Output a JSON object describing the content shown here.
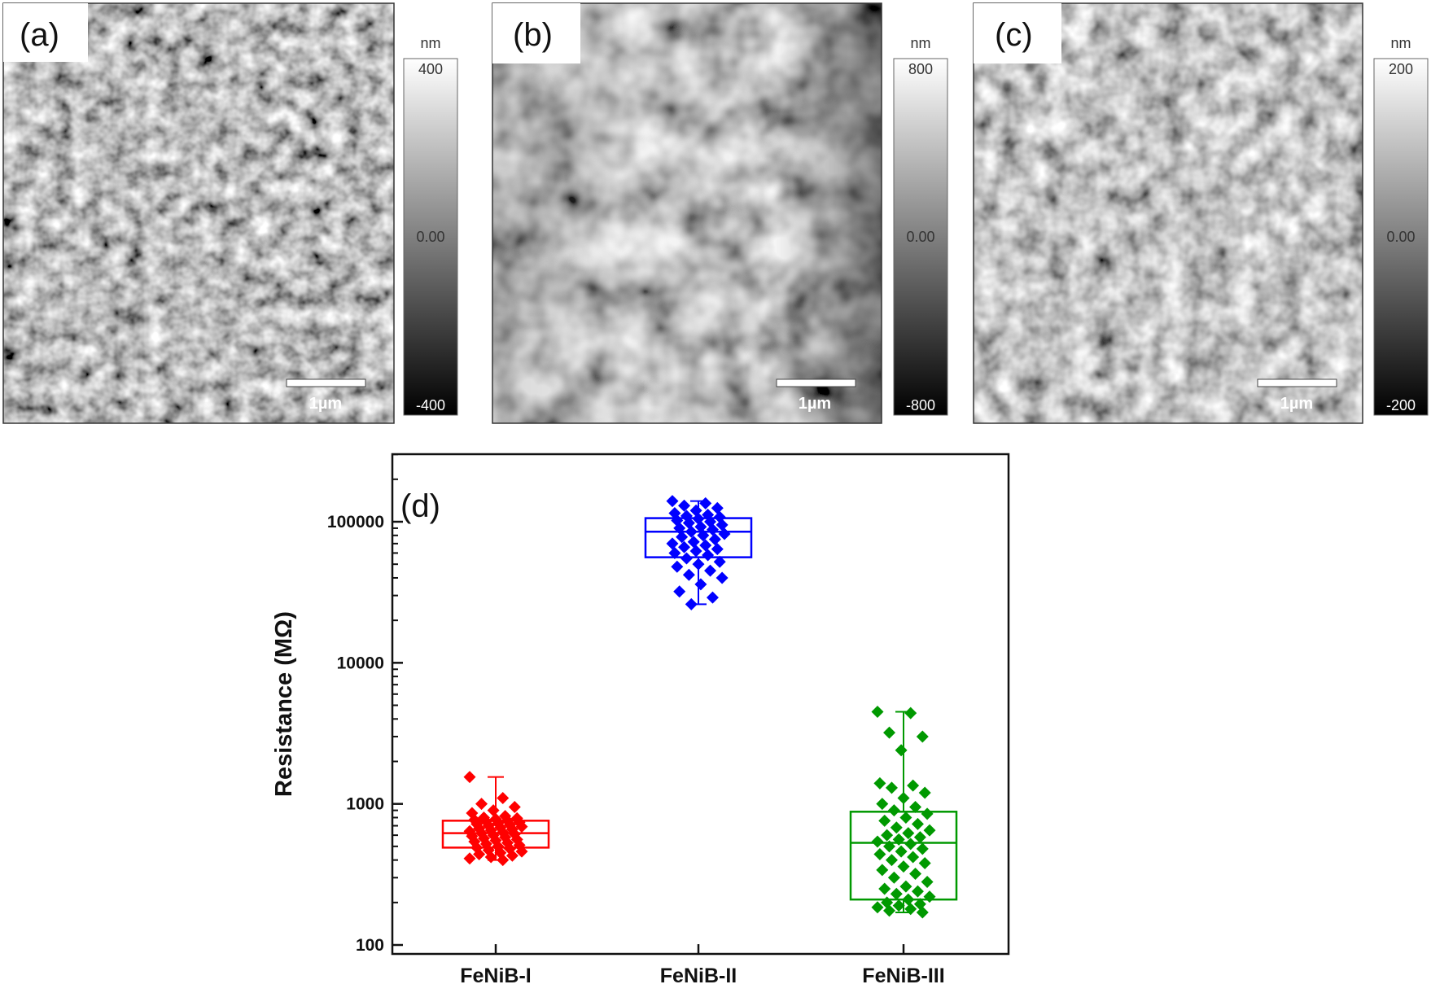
{
  "afm_panels": [
    {
      "label": "(a)",
      "colorbar": {
        "unit": "nm",
        "max": "400",
        "mid": "0.00",
        "min": "-400"
      },
      "scale_bar": "1µm"
    },
    {
      "label": "(b)",
      "colorbar": {
        "unit": "nm",
        "max": "800",
        "mid": "0.00",
        "min": "-800"
      },
      "scale_bar": "1µm"
    },
    {
      "label": "(c)",
      "colorbar": {
        "unit": "nm",
        "max": "200",
        "mid": "0.00",
        "min": "-200"
      },
      "scale_bar": "1µm"
    }
  ],
  "chart_data": {
    "type": "box",
    "panel_label": "(d)",
    "ylabel": "Resistance (MΩ)",
    "xlabel": "",
    "yscale": "log",
    "ylim": [
      100,
      300000
    ],
    "yticks": [
      "100",
      "1000",
      "10000",
      "100000"
    ],
    "grid": false,
    "categories": [
      "FeNiB-I",
      "FeNiB-II",
      "FeNiB-III"
    ],
    "series": [
      {
        "category": "FeNiB-I",
        "color": "#ff0000",
        "box": {
          "q1": 490,
          "median": 620,
          "q3": 760,
          "whisker_low": 400,
          "whisker_high": 1550
        },
        "points": [
          1550,
          1100,
          1000,
          950,
          900,
          860,
          820,
          800,
          790,
          780,
          770,
          760,
          750,
          740,
          730,
          720,
          710,
          700,
          690,
          680,
          670,
          660,
          650,
          640,
          630,
          620,
          610,
          600,
          590,
          580,
          570,
          560,
          550,
          540,
          530,
          520,
          510,
          500,
          490,
          480,
          470,
          460,
          450,
          440,
          430,
          420,
          410,
          400
        ]
      },
      {
        "category": "FeNiB-II",
        "color": "#0000ff",
        "box": {
          "q1": 56000,
          "median": 85000,
          "q3": 106000,
          "whisker_low": 26000,
          "whisker_high": 140000
        },
        "points": [
          140000,
          135000,
          130000,
          125000,
          120000,
          115000,
          112000,
          110000,
          108000,
          105000,
          102000,
          100000,
          98000,
          95000,
          92000,
          90000,
          88000,
          85000,
          82000,
          80000,
          78000,
          75000,
          72000,
          70000,
          68000,
          66000,
          64000,
          62000,
          60000,
          58000,
          55000,
          52000,
          50000,
          48000,
          45000,
          42000,
          40000,
          36000,
          32000,
          29000,
          26000
        ]
      },
      {
        "category": "FeNiB-III",
        "color": "#009900",
        "box": {
          "q1": 210,
          "median": 530,
          "q3": 880,
          "whisker_low": 170,
          "whisker_high": 4500
        },
        "points": [
          4500,
          4400,
          3200,
          3000,
          2400,
          1400,
          1350,
          1300,
          1200,
          1100,
          1000,
          950,
          900,
          850,
          800,
          760,
          720,
          680,
          650,
          620,
          600,
          580,
          560,
          540,
          520,
          500,
          480,
          460,
          440,
          420,
          400,
          380,
          360,
          340,
          320,
          300,
          280,
          260,
          250,
          240,
          230,
          220,
          210,
          200,
          195,
          190,
          185,
          180,
          175,
          170
        ]
      }
    ]
  }
}
